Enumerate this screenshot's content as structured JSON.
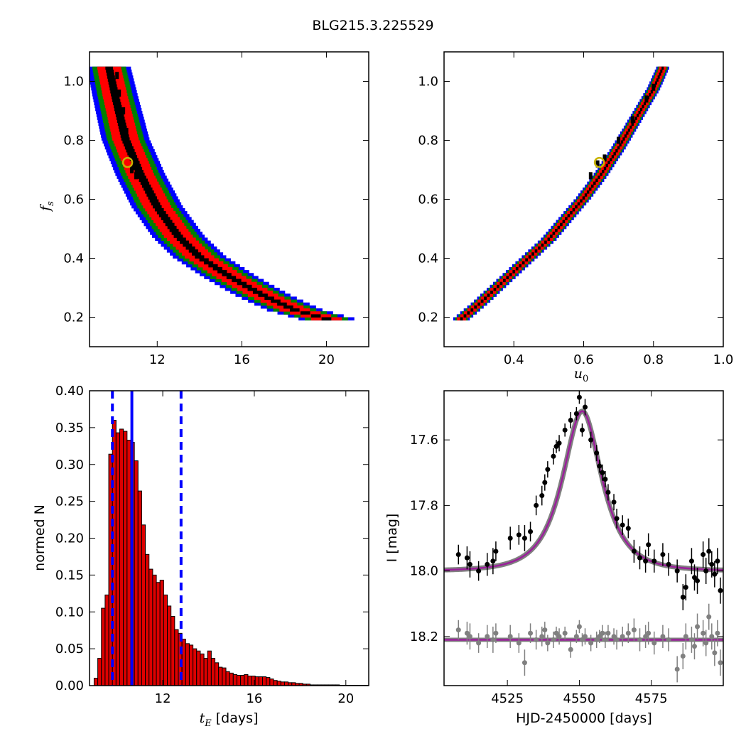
{
  "figure": {
    "title": "BLG215.3.225529"
  },
  "colors": {
    "sigma1": "#000000",
    "sigma2": "#ff0000",
    "sigma3": "#008000",
    "sigma4": "#0000ff",
    "best_fit_marker": "#c8b400",
    "hist_bar": "#dd0000",
    "median_line": "#0000ff",
    "model_line": "#9b1f9b",
    "model_band": "#808080",
    "data_points": "#000000",
    "residual_points": "#808080"
  },
  "chart_data": [
    {
      "id": "fs_vs_tE",
      "type": "heatmap",
      "title": "",
      "xlabel": "",
      "ylabel": "f_s",
      "ylabel_sub": "s",
      "xlim": [
        8.8,
        22
      ],
      "ylim": [
        0.1,
        1.1
      ],
      "xticks": [
        "12",
        "16",
        "20"
      ],
      "xtick_values": [
        12,
        16,
        20
      ],
      "yticks": [
        "0.2",
        "0.4",
        "0.6",
        "0.8",
        "1.0"
      ],
      "ytick_values": [
        0.2,
        0.4,
        0.6,
        0.8,
        1.0
      ],
      "curve_note": "confidence bands along tE ~ 7.3/sqrt(fs)",
      "band_curve": [
        [
          9.7,
          1.05
        ],
        [
          10.0,
          0.95
        ],
        [
          10.5,
          0.8
        ],
        [
          11.2,
          0.68
        ],
        [
          12.0,
          0.57
        ],
        [
          13.0,
          0.47
        ],
        [
          14.0,
          0.4
        ],
        [
          15.5,
          0.33
        ],
        [
          17.0,
          0.27
        ],
        [
          18.5,
          0.22
        ],
        [
          20.0,
          0.19
        ]
      ],
      "sigma_widths": {
        "sigma1": 0.35,
        "sigma2": 1.1,
        "sigma3": 1.55,
        "sigma4": 2.0
      },
      "black_points": [
        [
          10.1,
          1.02
        ],
        [
          10.2,
          0.96
        ],
        [
          10.4,
          0.9
        ],
        [
          10.55,
          0.83
        ],
        [
          10.6,
          0.78
        ],
        [
          10.9,
          0.73
        ],
        [
          10.8,
          0.7
        ],
        [
          11.0,
          0.68
        ]
      ],
      "best_fit": {
        "tE": 10.6,
        "fs": 0.725
      }
    },
    {
      "id": "fs_vs_u0",
      "type": "heatmap",
      "title": "",
      "xlabel": "u_0",
      "xlabel_sub": "0",
      "ylabel": "",
      "xlim": [
        0.2,
        1.0
      ],
      "ylim": [
        0.1,
        1.1
      ],
      "xticks": [
        "0.4",
        "0.6",
        "0.8",
        "1.0"
      ],
      "xtick_values": [
        0.4,
        0.6,
        0.8,
        1.0
      ],
      "yticks": [
        "0.2",
        "0.4",
        "0.6",
        "0.8",
        "1.0"
      ],
      "ytick_values": [
        0.2,
        0.4,
        0.6,
        0.8,
        1.0
      ],
      "band_curve": [
        [
          0.25,
          0.19
        ],
        [
          0.3,
          0.24
        ],
        [
          0.4,
          0.35
        ],
        [
          0.5,
          0.46
        ],
        [
          0.6,
          0.6
        ],
        [
          0.65,
          0.68
        ],
        [
          0.7,
          0.77
        ],
        [
          0.75,
          0.87
        ],
        [
          0.8,
          0.97
        ],
        [
          0.83,
          1.05
        ]
      ],
      "sigma_widths": {
        "sigma1": 0.006,
        "sigma2": 0.02,
        "sigma3": 0.028,
        "sigma4": 0.036
      },
      "black_points": [
        [
          0.62,
          0.68
        ],
        [
          0.64,
          0.72
        ],
        [
          0.66,
          0.74
        ],
        [
          0.7,
          0.8
        ],
        [
          0.74,
          0.87
        ],
        [
          0.78,
          0.94
        ],
        [
          0.8,
          0.98
        ]
      ],
      "best_fit": {
        "u0": 0.645,
        "fs": 0.725
      }
    },
    {
      "id": "tE_histogram",
      "type": "bar",
      "title": "",
      "xlabel": "t_E  [days]",
      "xlabel_math": "t",
      "xlabel_sub": "E",
      "xlabel_rest": " [days]",
      "ylabel": "normed N",
      "xlim": [
        8.8,
        21
      ],
      "ylim": [
        0.0,
        0.4
      ],
      "xticks": [
        "12",
        "16",
        "20"
      ],
      "xtick_values": [
        12,
        16,
        20
      ],
      "yticks": [
        "0.00",
        "0.05",
        "0.10",
        "0.15",
        "0.20",
        "0.25",
        "0.30",
        "0.35",
        "0.40"
      ],
      "ytick_values": [
        0,
        0.05,
        0.1,
        0.15,
        0.2,
        0.25,
        0.3,
        0.35,
        0.4
      ],
      "bin_start": 9.0,
      "bin_width": 0.16,
      "values": [
        0.01,
        0.037,
        0.105,
        0.123,
        0.314,
        0.36,
        0.343,
        0.348,
        0.345,
        0.333,
        0.33,
        0.305,
        0.264,
        0.218,
        0.178,
        0.158,
        0.15,
        0.14,
        0.143,
        0.123,
        0.108,
        0.094,
        0.076,
        0.071,
        0.063,
        0.057,
        0.055,
        0.05,
        0.047,
        0.043,
        0.037,
        0.047,
        0.037,
        0.031,
        0.025,
        0.024,
        0.019,
        0.017,
        0.015,
        0.014,
        0.014,
        0.015,
        0.013,
        0.013,
        0.012,
        0.012,
        0.012,
        0.011,
        0.009,
        0.007,
        0.006,
        0.005,
        0.005,
        0.004,
        0.004,
        0.003,
        0.003,
        0.002,
        0.002,
        0.001,
        0.001,
        0.001,
        0.001,
        0.001,
        0.001,
        0.001,
        0.001,
        0.0005,
        0.0005,
        0.0005,
        0.0005,
        0.0005,
        0.0005,
        0.0005,
        0.0005,
        0.0005
      ],
      "vlines": [
        {
          "name": "median",
          "x": 10.65,
          "style": "solid"
        },
        {
          "name": "lower",
          "x": 9.8,
          "style": "dashed"
        },
        {
          "name": "upper",
          "x": 12.8,
          "style": "dashed"
        }
      ]
    },
    {
      "id": "light_curve",
      "type": "scatter",
      "title": "",
      "xlabel": "HJD-2450000 [days]",
      "ylabel": "I [mag]",
      "xlim": [
        4503,
        4600
      ],
      "ylim": [
        18.35,
        17.45
      ],
      "xticks": [
        "4525",
        "4550",
        "4575"
      ],
      "xtick_values": [
        4525,
        4550,
        4575
      ],
      "yticks": [
        "17.6",
        "17.8",
        "18.0",
        "18.2"
      ],
      "ytick_values": [
        17.6,
        17.8,
        18.0,
        18.2
      ],
      "model": {
        "t0": 4551.0,
        "tE": 10.65,
        "u0": 0.645,
        "fs": 0.725,
        "base_mag": 18.0,
        "residual_base": 18.21
      },
      "series": [
        {
          "name": "",
          "kind": "data",
          "points": [
            [
              4508,
              17.95,
              0.03
            ],
            [
              4511,
              17.96,
              0.035
            ],
            [
              4512,
              17.98,
              0.04
            ],
            [
              4515,
              18.0,
              0.03
            ],
            [
              4518,
              17.98,
              0.035
            ],
            [
              4520,
              17.97,
              0.04
            ],
            [
              4521,
              17.94,
              0.03
            ],
            [
              4526,
              17.9,
              0.035
            ],
            [
              4529,
              17.89,
              0.03
            ],
            [
              4531,
              17.9,
              0.04
            ],
            [
              4533,
              17.88,
              0.03
            ],
            [
              4535,
              17.8,
              0.03
            ],
            [
              4537,
              17.77,
              0.03
            ],
            [
              4538,
              17.73,
              0.025
            ],
            [
              4539,
              17.69,
              0.025
            ],
            [
              4541,
              17.65,
              0.025
            ],
            [
              4542,
              17.62,
              0.02
            ],
            [
              4543,
              17.61,
              0.025
            ],
            [
              4545,
              17.57,
              0.02
            ],
            [
              4547,
              17.54,
              0.025
            ],
            [
              4549,
              17.52,
              0.02
            ],
            [
              4550,
              17.47,
              0.02
            ],
            [
              4551,
              17.57,
              0.02
            ],
            [
              4552,
              17.5,
              0.025
            ],
            [
              4554,
              17.6,
              0.025
            ],
            [
              4556,
              17.64,
              0.025
            ],
            [
              4557,
              17.68,
              0.02
            ],
            [
              4558,
              17.7,
              0.025
            ],
            [
              4559,
              17.72,
              0.025
            ],
            [
              4560,
              17.76,
              0.025
            ],
            [
              4562,
              17.79,
              0.025
            ],
            [
              4563,
              17.84,
              0.03
            ],
            [
              4565,
              17.86,
              0.03
            ],
            [
              4567,
              17.87,
              0.03
            ],
            [
              4569,
              17.94,
              0.035
            ],
            [
              4571,
              17.96,
              0.035
            ],
            [
              4573,
              17.97,
              0.035
            ],
            [
              4574,
              17.92,
              0.035
            ],
            [
              4576,
              17.97,
              0.035
            ],
            [
              4579,
              17.95,
              0.035
            ],
            [
              4581,
              17.98,
              0.035
            ],
            [
              4584,
              18.0,
              0.035
            ],
            [
              4586,
              18.08,
              0.04
            ],
            [
              4587,
              18.05,
              0.04
            ],
            [
              4589,
              17.97,
              0.04
            ],
            [
              4590,
              18.02,
              0.04
            ],
            [
              4591,
              18.03,
              0.04
            ],
            [
              4593,
              17.95,
              0.04
            ],
            [
              4594,
              18.0,
              0.04
            ],
            [
              4595,
              17.94,
              0.04
            ],
            [
              4596,
              17.98,
              0.04
            ],
            [
              4597,
              18.01,
              0.04
            ],
            [
              4598,
              17.97,
              0.04
            ],
            [
              4599,
              18.06,
              0.04
            ]
          ]
        },
        {
          "name": "",
          "kind": "residuals",
          "points": [
            [
              4508,
              18.18,
              0.03
            ],
            [
              4511,
              18.19,
              0.035
            ],
            [
              4512,
              18.2,
              0.04
            ],
            [
              4515,
              18.22,
              0.03
            ],
            [
              4518,
              18.2,
              0.035
            ],
            [
              4520,
              18.21,
              0.04
            ],
            [
              4521,
              18.19,
              0.03
            ],
            [
              4526,
              18.2,
              0.035
            ],
            [
              4529,
              18.22,
              0.03
            ],
            [
              4531,
              18.28,
              0.04
            ],
            [
              4533,
              18.19,
              0.03
            ],
            [
              4535,
              18.21,
              0.03
            ],
            [
              4537,
              18.2,
              0.03
            ],
            [
              4538,
              18.18,
              0.025
            ],
            [
              4539,
              18.22,
              0.025
            ],
            [
              4541,
              18.21,
              0.025
            ],
            [
              4542,
              18.19,
              0.02
            ],
            [
              4543,
              18.2,
              0.025
            ],
            [
              4545,
              18.19,
              0.02
            ],
            [
              4547,
              18.24,
              0.025
            ],
            [
              4549,
              18.2,
              0.02
            ],
            [
              4550,
              18.17,
              0.02
            ],
            [
              4551,
              18.21,
              0.02
            ],
            [
              4552,
              18.2,
              0.025
            ],
            [
              4554,
              18.22,
              0.025
            ],
            [
              4556,
              18.21,
              0.025
            ],
            [
              4557,
              18.2,
              0.02
            ],
            [
              4558,
              18.19,
              0.025
            ],
            [
              4559,
              18.21,
              0.025
            ],
            [
              4560,
              18.19,
              0.025
            ],
            [
              4562,
              18.2,
              0.025
            ],
            [
              4563,
              18.21,
              0.03
            ],
            [
              4565,
              18.2,
              0.03
            ],
            [
              4567,
              18.19,
              0.03
            ],
            [
              4569,
              18.18,
              0.035
            ],
            [
              4571,
              18.21,
              0.035
            ],
            [
              4573,
              18.2,
              0.035
            ],
            [
              4574,
              18.19,
              0.035
            ],
            [
              4576,
              18.22,
              0.035
            ],
            [
              4579,
              18.2,
              0.035
            ],
            [
              4581,
              18.21,
              0.035
            ],
            [
              4584,
              18.3,
              0.04
            ],
            [
              4586,
              18.26,
              0.04
            ],
            [
              4587,
              18.2,
              0.04
            ],
            [
              4589,
              18.21,
              0.04
            ],
            [
              4590,
              18.23,
              0.04
            ],
            [
              4591,
              18.17,
              0.04
            ],
            [
              4593,
              18.19,
              0.04
            ],
            [
              4594,
              18.22,
              0.04
            ],
            [
              4595,
              18.14,
              0.04
            ],
            [
              4596,
              18.2,
              0.04
            ],
            [
              4597,
              18.25,
              0.04
            ],
            [
              4598,
              18.19,
              0.04
            ],
            [
              4599,
              18.28,
              0.04
            ]
          ]
        }
      ]
    }
  ]
}
